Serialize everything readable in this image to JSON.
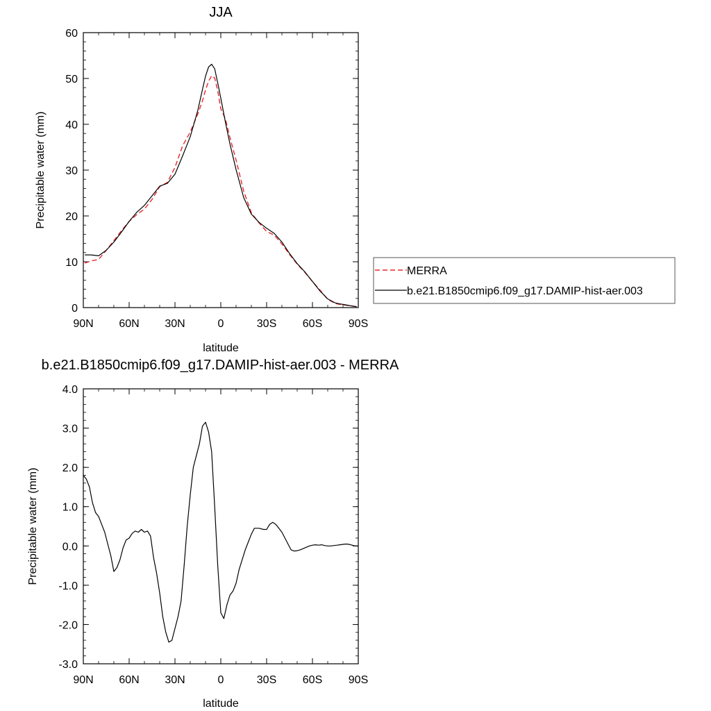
{
  "chart_data": [
    {
      "type": "line",
      "title": "JJA",
      "xlabel": "latitude",
      "ylabel": "Precipitable water (mm)",
      "xlim": [
        90,
        -90
      ],
      "ylim": [
        0,
        60
      ],
      "yticks": [
        0,
        10,
        20,
        30,
        40,
        50,
        60
      ],
      "ytick_labels": [
        "0",
        "10",
        "20",
        "30",
        "40",
        "50",
        "60"
      ],
      "xticks": [
        90,
        60,
        30,
        0,
        -30,
        -60,
        -90
      ],
      "xtick_labels": [
        "90N",
        "60N",
        "30N",
        "0",
        "30S",
        "60S",
        "90S"
      ],
      "grid": false,
      "legend": "right",
      "series": [
        {
          "name": "MERRA",
          "color": "#e8262a",
          "dash": "dashed",
          "x": [
            89,
            85,
            80,
            75,
            70,
            65,
            60,
            55,
            50,
            45,
            40,
            35,
            30,
            25,
            20,
            15,
            12,
            10,
            8,
            6,
            4,
            2,
            0,
            -3,
            -6,
            -10,
            -15,
            -20,
            -25,
            -30,
            -35,
            -40,
            -45,
            -50,
            -55,
            -60,
            -65,
            -70,
            -75,
            -78,
            -80,
            -85,
            -89
          ],
          "values": [
            9.7,
            10.2,
            10.5,
            12.5,
            14.6,
            16.8,
            18.8,
            20.3,
            21.5,
            23.6,
            26.4,
            27.3,
            30.6,
            35.3,
            38.3,
            42.3,
            45.1,
            47.5,
            49.4,
            50.6,
            50.1,
            47.3,
            43.4,
            41.2,
            37.1,
            32.2,
            25.4,
            20.7,
            18.5,
            16.6,
            15.8,
            13.9,
            11.6,
            9.5,
            7.7,
            5.7,
            3.8,
            1.8,
            0.9,
            0.7,
            0.6,
            0.4,
            0.2
          ]
        },
        {
          "name": "b.e21.B1850cmip6.f09_g17.DAMIP-hist-aer.003",
          "color": "#000000",
          "dash": "solid",
          "x": [
            89,
            85,
            80,
            75,
            70,
            65,
            60,
            55,
            50,
            45,
            40,
            35,
            30,
            25,
            20,
            15,
            12,
            10,
            8,
            6,
            4,
            2,
            0,
            -3,
            -6,
            -10,
            -15,
            -20,
            -25,
            -30,
            -35,
            -40,
            -45,
            -50,
            -55,
            -60,
            -65,
            -70,
            -75,
            -78,
            -80,
            -85,
            -89
          ],
          "values": [
            11.5,
            11.5,
            11.3,
            12.5,
            14.3,
            16.5,
            18.8,
            20.8,
            22.3,
            24.4,
            26.5,
            27.1,
            29.1,
            33.1,
            37.3,
            43.1,
            47.6,
            50.5,
            52.5,
            53.1,
            52.1,
            49.0,
            45.7,
            40.5,
            35.7,
            30.1,
            24.0,
            20.4,
            18.6,
            17.3,
            16.2,
            14.3,
            11.8,
            9.6,
            7.8,
            5.7,
            3.6,
            1.9,
            1.0,
            0.8,
            0.7,
            0.4,
            0.2
          ]
        }
      ]
    },
    {
      "type": "line",
      "title": "b.e21.B1850cmip6.f09_g17.DAMIP-hist-aer.003 - MERRA",
      "xlabel": "latitude",
      "ylabel": "Precipitable water (mm)",
      "xlim": [
        90,
        -90
      ],
      "ylim": [
        -3.0,
        4.0
      ],
      "yticks": [
        -3,
        -2,
        -1,
        0,
        1,
        2,
        3,
        4
      ],
      "ytick_labels": [
        "-3.0",
        "-2.0",
        "-1.0",
        "0.0",
        "1.0",
        "2.0",
        "3.0",
        "4.0"
      ],
      "xticks": [
        90,
        60,
        30,
        0,
        -30,
        -60,
        -90
      ],
      "xtick_labels": [
        "90N",
        "60N",
        "30N",
        "0",
        "30S",
        "60S",
        "90S"
      ],
      "grid": false,
      "series": [
        {
          "color": "#000000",
          "dash": "solid",
          "x": [
            90,
            88,
            86,
            84,
            82,
            80,
            78,
            76,
            74,
            72,
            70,
            68,
            66,
            64,
            62,
            60,
            58,
            56,
            54,
            52,
            50,
            48,
            46,
            44,
            42,
            40,
            38,
            36,
            34,
            32,
            30,
            28,
            26,
            24,
            22,
            20,
            18,
            16,
            14,
            12,
            10,
            8,
            6,
            4,
            2,
            0,
            -2,
            -4,
            -6,
            -8,
            -10,
            -12,
            -14,
            -16,
            -18,
            -20,
            -22,
            -25,
            -28,
            -30,
            -32,
            -34,
            -36,
            -38,
            -40,
            -42,
            -44,
            -46,
            -48,
            -50,
            -52,
            -55,
            -58,
            -60,
            -62,
            -64,
            -66,
            -68,
            -70,
            -72,
            -74,
            -76,
            -78,
            -80,
            -82,
            -84,
            -86,
            -88,
            -90
          ],
          "values": [
            1.8,
            1.7,
            1.5,
            1.1,
            0.85,
            0.75,
            0.55,
            0.35,
            0.05,
            -0.25,
            -0.65,
            -0.55,
            -0.35,
            -0.05,
            0.15,
            0.2,
            0.32,
            0.38,
            0.35,
            0.42,
            0.35,
            0.38,
            0.25,
            -0.3,
            -0.7,
            -1.2,
            -1.8,
            -2.2,
            -2.45,
            -2.4,
            -2.1,
            -1.8,
            -1.4,
            -0.5,
            0.5,
            1.3,
            2.0,
            2.3,
            2.6,
            3.05,
            3.15,
            2.9,
            2.4,
            1.0,
            -0.5,
            -1.7,
            -1.85,
            -1.5,
            -1.25,
            -1.15,
            -0.95,
            -0.6,
            -0.35,
            -0.1,
            0.1,
            0.3,
            0.45,
            0.45,
            0.42,
            0.42,
            0.55,
            0.6,
            0.55,
            0.45,
            0.35,
            0.2,
            0.05,
            -0.1,
            -0.13,
            -0.12,
            -0.1,
            -0.05,
            0.0,
            0.02,
            0.03,
            0.02,
            0.03,
            0.01,
            0.0,
            0.0,
            0.01,
            0.02,
            0.03,
            0.04,
            0.05,
            0.04,
            0.02,
            0.0,
            0.0
          ]
        }
      ]
    }
  ]
}
